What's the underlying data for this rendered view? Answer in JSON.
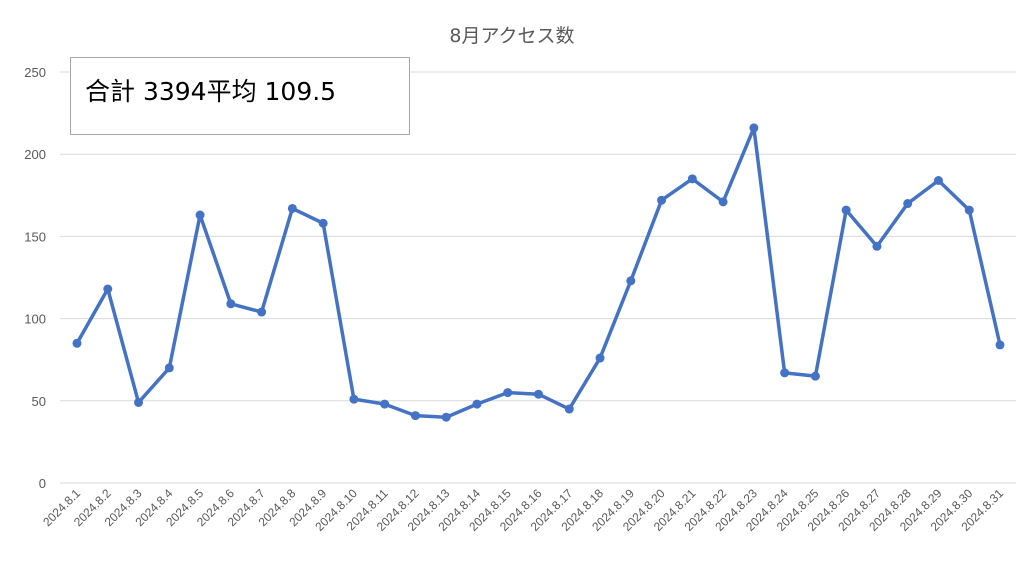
{
  "summary": {
    "text": "合計 3394平均 109.5"
  },
  "colors": {
    "series": "#4472c4",
    "grid": "#d9d9d9",
    "text": "#595959"
  },
  "chart_data": {
    "type": "line",
    "title": "8月アクセス数",
    "xlabel": "",
    "ylabel": "",
    "ylim": [
      0,
      250
    ],
    "yticks": [
      0,
      50,
      100,
      150,
      200,
      250
    ],
    "grid": true,
    "legend": "none",
    "categories": [
      "2024.8.1",
      "2024.8.2",
      "2024.8.3",
      "2024.8.4",
      "2024.8.5",
      "2024.8.6",
      "2024.8.7",
      "2024.8.8",
      "2024.8.9",
      "2024.8.10",
      "2024.8.11",
      "2024.8.12",
      "2024.8.13",
      "2024.8.14",
      "2024.8.15",
      "2024.8.16",
      "2024.8.17",
      "2024.8.18",
      "2024.8.19",
      "2024.8.20",
      "2024.8.21",
      "2024.8.22",
      "2024.8.23",
      "2024.8.24",
      "2024.8.25",
      "2024.8.26",
      "2024.8.27",
      "2024.8.28",
      "2024.8.29",
      "2024.8.30",
      "2024.8.31"
    ],
    "series": [
      {
        "values": [
          85,
          118,
          49,
          70,
          163,
          109,
          104,
          167,
          158,
          51,
          48,
          41,
          40,
          48,
          55,
          54,
          45,
          76,
          123,
          172,
          185,
          171,
          216,
          67,
          65,
          166,
          144,
          170,
          184,
          166,
          84
        ]
      }
    ]
  }
}
